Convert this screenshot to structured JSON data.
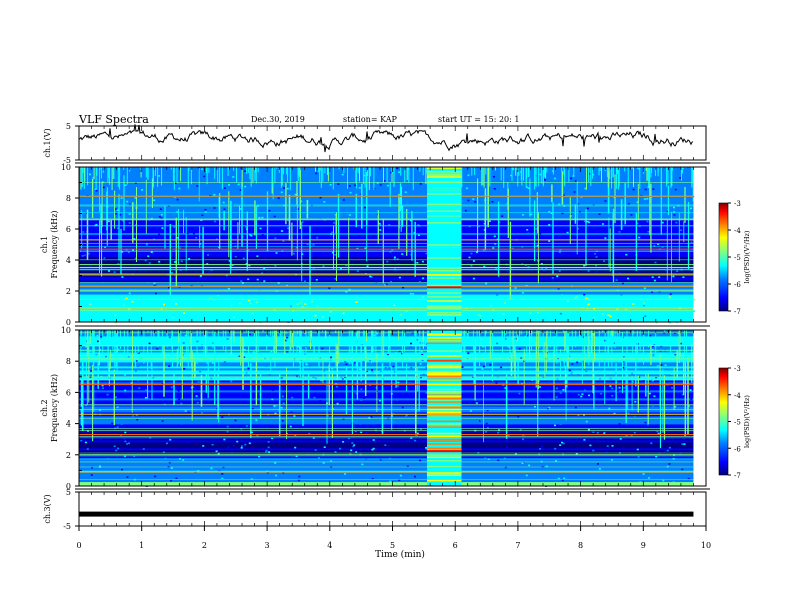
{
  "header": {
    "title": "VLF Spectra",
    "date": "Dec.30, 2019",
    "station": "station= KAP",
    "start_ut": "start  UT =   15: 20: 1"
  },
  "chart_data": [
    {
      "type": "line",
      "name": "ch1-waveform",
      "ylabel": "ch.1(V)",
      "ylim": [
        -5,
        5
      ],
      "yticks": [
        "5",
        "-5"
      ],
      "xlim": [
        0,
        10
      ],
      "data_extent_min": 9.8
    },
    {
      "type": "heatmap",
      "name": "ch1-spectrogram",
      "ylabel_lines": [
        "ch.1",
        "Frequency  (kHz)"
      ],
      "ylim": [
        0,
        10
      ],
      "yticks": [
        "0",
        "2",
        "4",
        "6",
        "8",
        "10"
      ],
      "xlim": [
        0,
        10
      ],
      "data_extent_min": 9.8,
      "strong_lines_khz": [
        0.9,
        2.0,
        2.3,
        3.1,
        3.7,
        4.7,
        5.3,
        6.6,
        8.1
      ],
      "broadband_burst_min": [
        5.55,
        6.1
      ],
      "colorbar": {
        "label": "log(PSD)(V²/Hz)",
        "range": [
          -7,
          -3
        ],
        "ticks": [
          "-3",
          "-4",
          "-5",
          "-6",
          "-7"
        ]
      }
    },
    {
      "type": "heatmap",
      "name": "ch2-spectrogram",
      "ylabel_lines": [
        "ch.2",
        "Frequency  (kHz)"
      ],
      "ylim": [
        0,
        10
      ],
      "yticks": [
        "0",
        "2",
        "4",
        "6",
        "8",
        "10"
      ],
      "xlim": [
        0,
        10
      ],
      "data_extent_min": 9.8,
      "strong_lines_khz": [
        0.9,
        2.0,
        3.3,
        4.6,
        5.2,
        6.5,
        8.1,
        9.0
      ],
      "broadband_burst_min": [
        5.55,
        6.1
      ],
      "colorbar": {
        "label": "log(PSD)(V²/Hz)",
        "range": [
          -7,
          -3
        ],
        "ticks": [
          "-3",
          "-4",
          "-5",
          "-6",
          "-7"
        ]
      }
    },
    {
      "type": "line",
      "name": "ch3-waveform",
      "ylabel": "ch.3(V)",
      "ylim": [
        -5,
        5
      ],
      "yticks": [
        "5",
        "-5"
      ],
      "xlim": [
        0,
        10
      ],
      "constant_value": -1.5,
      "data_extent_min": 9.8
    }
  ],
  "xaxis": {
    "label": "Time  (min)",
    "ticks": [
      "0",
      "1",
      "2",
      "3",
      "4",
      "5",
      "6",
      "7",
      "8",
      "9",
      "10"
    ]
  },
  "colors": {
    "colormap": [
      "#000080",
      "#0000ff",
      "#0080ff",
      "#00ffff",
      "#80ff80",
      "#ffff00",
      "#ff8000",
      "#ff0000",
      "#800000"
    ]
  }
}
